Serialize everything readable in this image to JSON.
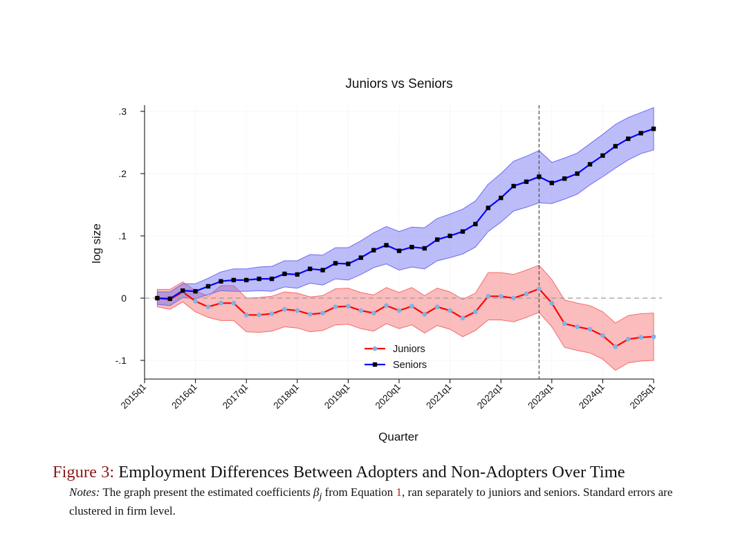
{
  "chart_data": {
    "type": "line",
    "title": "Juniors vs Seniors",
    "xlabel": "Quarter",
    "ylabel": "log size",
    "ylim": [
      -0.13,
      0.31
    ],
    "yticks": [
      -0.1,
      0,
      0.1,
      0.2,
      0.3
    ],
    "ytick_labels": [
      "-.1",
      "0",
      ".1",
      ".2",
      ".3"
    ],
    "xlim": [
      0,
      40
    ],
    "xticks": [
      0,
      4,
      8,
      12,
      16,
      20,
      24,
      28,
      32,
      36,
      40
    ],
    "xtick_labels": [
      "2015q1",
      "2016q1",
      "2017q1",
      "2018q1",
      "2019q1",
      "2020q1",
      "2021q1",
      "2022q1",
      "2023q1",
      "2024q1",
      "2025q1"
    ],
    "vline_x": 31,
    "hline_y": 0,
    "grid": true,
    "legend_position": "bottom-center",
    "x": [
      1,
      2,
      3,
      4,
      5,
      6,
      7,
      8,
      9,
      10,
      11,
      12,
      13,
      14,
      15,
      16,
      17,
      18,
      19,
      20,
      21,
      22,
      23,
      24,
      25,
      26,
      27,
      28,
      29,
      30,
      31,
      32,
      33,
      34,
      35,
      36,
      37,
      38,
      39,
      40
    ],
    "series": [
      {
        "name": "Juniors",
        "color": "#ff0000",
        "marker_color": "#7fb3e6",
        "band_color": "#f46a6a",
        "values": [
          0,
          -0.002,
          0.01,
          -0.005,
          -0.014,
          -0.008,
          -0.008,
          -0.027,
          -0.027,
          -0.025,
          -0.018,
          -0.02,
          -0.026,
          -0.024,
          -0.014,
          -0.013,
          -0.02,
          -0.024,
          -0.012,
          -0.02,
          -0.013,
          -0.026,
          -0.014,
          -0.02,
          -0.032,
          -0.022,
          0.003,
          0.003,
          0,
          0.007,
          0.015,
          -0.008,
          -0.041,
          -0.046,
          -0.05,
          -0.06,
          -0.078,
          -0.066,
          -0.063,
          -0.062
        ],
        "lower": [
          -0.014,
          -0.018,
          -0.006,
          -0.022,
          -0.031,
          -0.036,
          -0.036,
          -0.054,
          -0.055,
          -0.053,
          -0.046,
          -0.048,
          -0.054,
          -0.052,
          -0.043,
          -0.042,
          -0.049,
          -0.053,
          -0.041,
          -0.049,
          -0.043,
          -0.056,
          -0.044,
          -0.05,
          -0.062,
          -0.052,
          -0.035,
          -0.035,
          -0.038,
          -0.031,
          -0.023,
          -0.046,
          -0.079,
          -0.084,
          -0.088,
          -0.098,
          -0.116,
          -0.104,
          -0.101,
          -0.1
        ],
        "upper": [
          0.014,
          0.014,
          0.026,
          0.012,
          0.003,
          0.02,
          0.02,
          0,
          0.001,
          0.003,
          0.01,
          0.008,
          0.002,
          0.004,
          0.015,
          0.016,
          0.009,
          0.005,
          0.017,
          0.009,
          0.017,
          0.004,
          0.016,
          0.01,
          -0.002,
          0.008,
          0.041,
          0.041,
          0.038,
          0.045,
          0.053,
          0.03,
          -0.003,
          -0.008,
          -0.012,
          -0.022,
          -0.04,
          -0.028,
          -0.025,
          -0.024
        ]
      },
      {
        "name": "Seniors",
        "color": "#0000ff",
        "marker_color": "#000000",
        "band_color": "#6b6bf2",
        "values": [
          0,
          -0.001,
          0.012,
          0.011,
          0.019,
          0.027,
          0.029,
          0.029,
          0.031,
          0.031,
          0.039,
          0.038,
          0.047,
          0.045,
          0.056,
          0.055,
          0.065,
          0.077,
          0.085,
          0.076,
          0.082,
          0.08,
          0.094,
          0.1,
          0.107,
          0.119,
          0.145,
          0.161,
          0.18,
          0.187,
          0.195,
          0.185,
          0.192,
          0.2,
          0.215,
          0.229,
          0.244,
          0.256,
          0.265,
          0.272
        ],
        "lower": [
          -0.01,
          -0.012,
          0.001,
          -0.001,
          0.006,
          0.012,
          0.011,
          0.011,
          0.012,
          0.011,
          0.018,
          0.016,
          0.024,
          0.021,
          0.031,
          0.029,
          0.038,
          0.049,
          0.055,
          0.045,
          0.05,
          0.047,
          0.06,
          0.065,
          0.071,
          0.082,
          0.107,
          0.122,
          0.14,
          0.146,
          0.153,
          0.152,
          0.159,
          0.167,
          0.182,
          0.195,
          0.209,
          0.222,
          0.232,
          0.238
        ],
        "upper": [
          0.01,
          0.01,
          0.023,
          0.023,
          0.032,
          0.042,
          0.047,
          0.047,
          0.05,
          0.051,
          0.06,
          0.06,
          0.07,
          0.069,
          0.081,
          0.081,
          0.092,
          0.105,
          0.115,
          0.107,
          0.114,
          0.113,
          0.128,
          0.135,
          0.143,
          0.156,
          0.183,
          0.2,
          0.22,
          0.228,
          0.237,
          0.218,
          0.225,
          0.233,
          0.248,
          0.263,
          0.279,
          0.29,
          0.298,
          0.306
        ]
      }
    ]
  },
  "caption": {
    "figure_label": "Figure 3:",
    "figure_title": "Employment Differences Between Adopters and Non-Adopters Over Time",
    "notes_label": "Notes:",
    "notes_text_1": "The graph present the estimated coefficients",
    "beta_symbol": "β",
    "beta_subscript": "j",
    "notes_text_2": "from Equation",
    "equation_ref": "1",
    "notes_text_3": ", ran separately to juniors and seniors. Standard errors are clustered in firm level."
  }
}
